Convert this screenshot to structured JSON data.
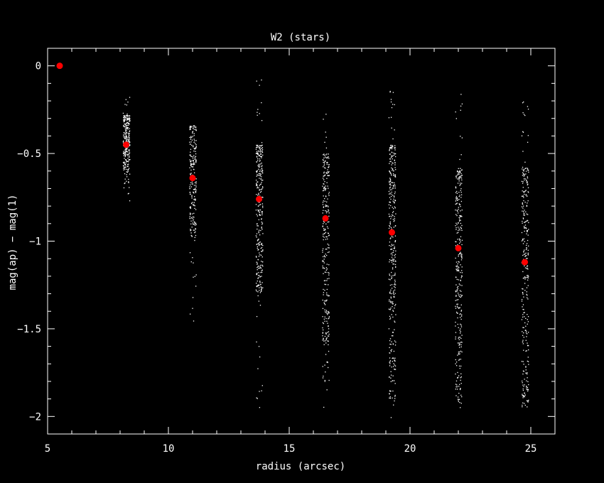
{
  "chart_data": {
    "type": "scatter",
    "title": "W2 (stars)",
    "xlabel": "radius (arcsec)",
    "ylabel": "mag(ap) − mag(1)",
    "xlim": [
      5,
      26
    ],
    "ylim": [
      -2.1,
      0.1
    ],
    "x_ticks": [
      5,
      10,
      15,
      20,
      25
    ],
    "y_ticks": [
      0,
      -0.5,
      -1,
      -1.5,
      -2
    ],
    "x_tick_labels": [
      "5",
      "10",
      "15",
      "20",
      "25"
    ],
    "y_tick_labels": [
      "0",
      "−0.5",
      "−1",
      "−1.5",
      "−2"
    ],
    "grid": false,
    "background": "#000000",
    "axis_color": "#ffffff",
    "scatter_color": "#ffffff",
    "mean_color": "#ff0000",
    "series": [
      {
        "kind": "scatter",
        "columns": [
          {
            "x": 8.25,
            "core": [
              -0.28,
              -0.62
            ],
            "tail": [
              -0.17,
              -0.79
            ],
            "density": 260
          },
          {
            "x": 11.0,
            "core": [
              -0.34,
              -0.98
            ],
            "tail": [
              -0.33,
              -1.5
            ],
            "density": 230
          },
          {
            "x": 13.75,
            "core": [
              -0.45,
              -1.3
            ],
            "tail": [
              -0.05,
              -2.0
            ],
            "density": 320
          },
          {
            "x": 16.5,
            "core": [
              -0.5,
              -1.6
            ],
            "tail": [
              -0.22,
              -1.95
            ],
            "density": 280
          },
          {
            "x": 19.25,
            "core": [
              -0.45,
              -1.9
            ],
            "tail": [
              -0.1,
              -2.03
            ],
            "density": 360
          },
          {
            "x": 22.0,
            "core": [
              -0.58,
              -1.95
            ],
            "tail": [
              -0.15,
              -2.03
            ],
            "density": 320
          },
          {
            "x": 24.75,
            "core": [
              -0.58,
              -1.95
            ],
            "tail": [
              -0.18,
              -2.03
            ],
            "density": 300
          }
        ]
      },
      {
        "kind": "mean",
        "x": [
          5.5,
          8.25,
          11.0,
          13.75,
          16.5,
          19.25,
          22.0,
          24.75
        ],
        "y": [
          0.0,
          -0.45,
          -0.64,
          -0.76,
          -0.87,
          -0.95,
          -1.04,
          -1.12
        ]
      }
    ]
  }
}
